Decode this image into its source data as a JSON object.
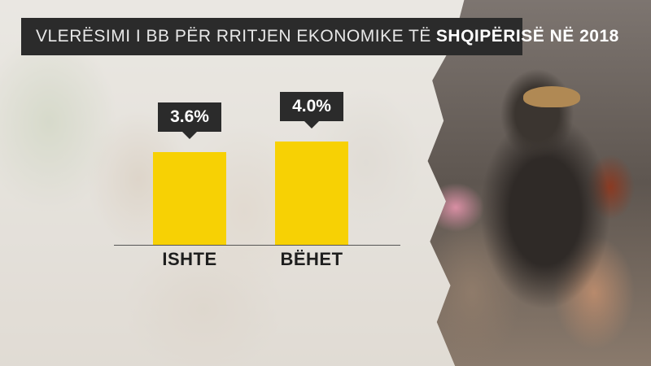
{
  "header": {
    "title_main": "VLERËSIMI I BB PËR RRITJEN EKONOMIKE TË",
    "title_highlight": "SHQIPËRISË NË 2018"
  },
  "colors": {
    "bar": "#f7d104",
    "label_box": "#2b2b2b"
  },
  "chart_data": {
    "type": "bar",
    "title": "VLERËSIMI I BB PËR RRITJEN EKONOMIKE TË SHQIPËRISË NË 2018",
    "categories": [
      "ISHTE",
      "BËHET"
    ],
    "values": [
      3.6,
      4.0
    ],
    "value_labels": [
      "3.6%",
      "4.0%"
    ],
    "ylim": [
      0,
      4.9
    ],
    "grid": false
  }
}
